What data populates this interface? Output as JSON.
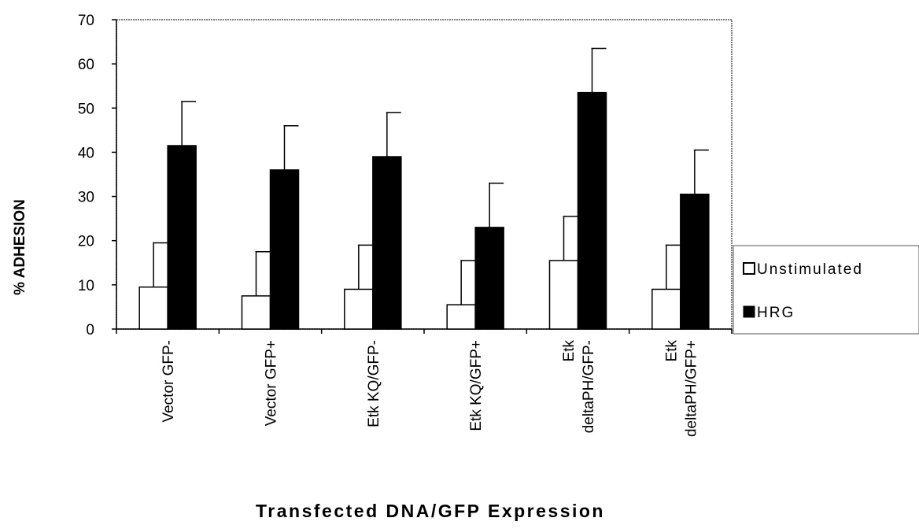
{
  "chart_data": {
    "type": "bar",
    "title": "",
    "xlabel": "Transfected DNA/GFP Expression",
    "ylabel": "% ADHESION",
    "ylim": [
      0,
      70
    ],
    "yticks": [
      0,
      10,
      20,
      30,
      40,
      50,
      60,
      70
    ],
    "grid": false,
    "legend_position": "right",
    "categories": [
      [
        "Vector GFP-"
      ],
      [
        "Vector GFP+"
      ],
      [
        "Etk KQ/GFP-"
      ],
      [
        "Etk KQ/GFP+"
      ],
      [
        "Etk",
        "deltaPH/GFP-"
      ],
      [
        "Etk",
        "deltaPH/GFP+"
      ]
    ],
    "series": [
      {
        "name": "Unstimulated",
        "color": "#ffffff",
        "values": [
          9.5,
          7.5,
          9,
          5.5,
          15.5,
          9
        ],
        "error": [
          10,
          10,
          10,
          10,
          10,
          10
        ]
      },
      {
        "name": "HRG",
        "color": "#000000",
        "values": [
          41.5,
          36,
          39,
          23,
          53.5,
          30.5
        ],
        "error": [
          10,
          10,
          10,
          10,
          10,
          10
        ]
      }
    ]
  }
}
